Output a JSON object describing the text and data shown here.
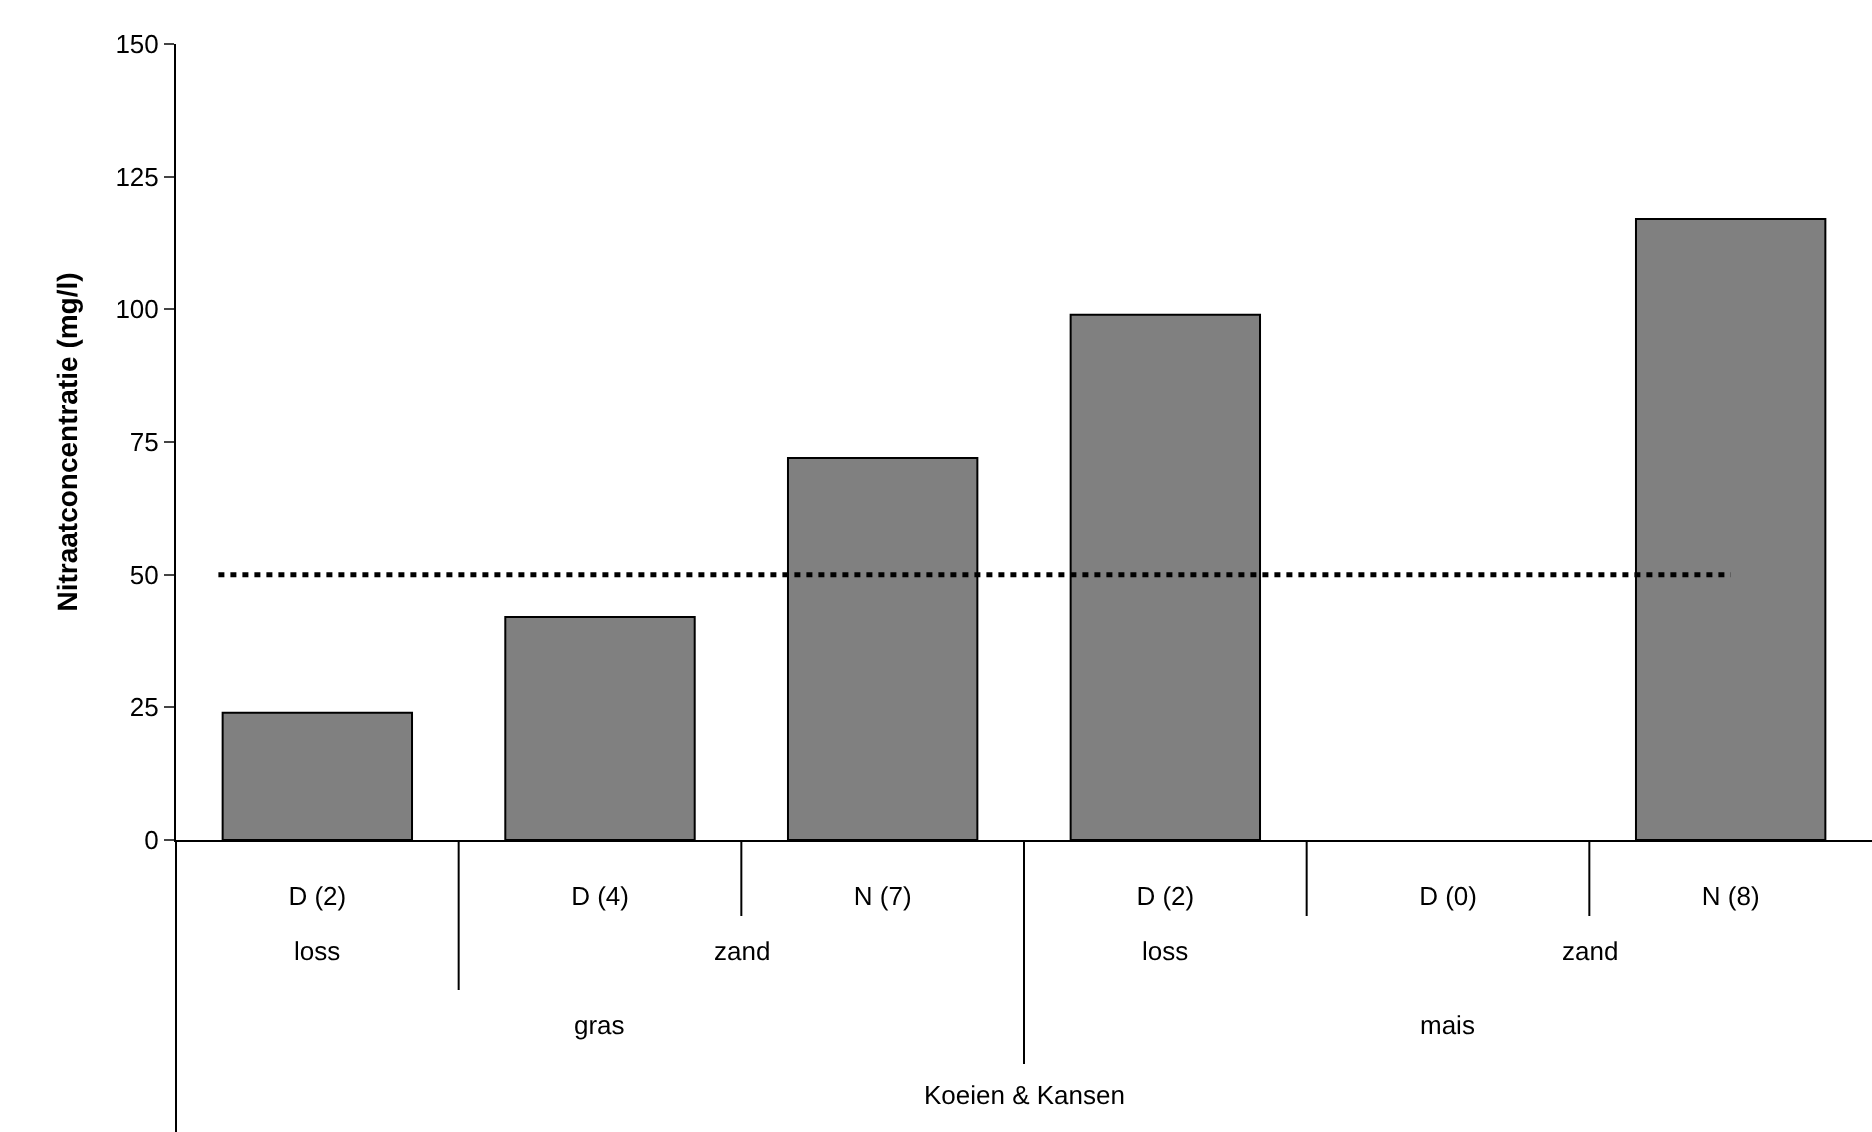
{
  "chart_data": {
    "type": "bar",
    "categories": [
      "D (2)",
      "D (4)",
      "N (7)",
      "D (2)",
      "D (0)",
      "N (8)"
    ],
    "values": [
      24,
      42,
      72,
      99,
      null,
      117
    ],
    "color": "#808080",
    "ylabel": "Nitraatconcentratie (mg/l)",
    "ylim": [
      0,
      150
    ],
    "yticks": [
      0,
      25,
      50,
      75,
      100,
      125,
      150
    ],
    "legend": false,
    "ref_lines": [
      {
        "axis": "y",
        "value": 50,
        "label": null,
        "color": "#000000",
        "line_style": "dotted"
      }
    ],
    "annotations": [
      "loss",
      "zand",
      "loss",
      "zand",
      "gras",
      "mais",
      "Koeien & Kansen"
    ]
  }
}
